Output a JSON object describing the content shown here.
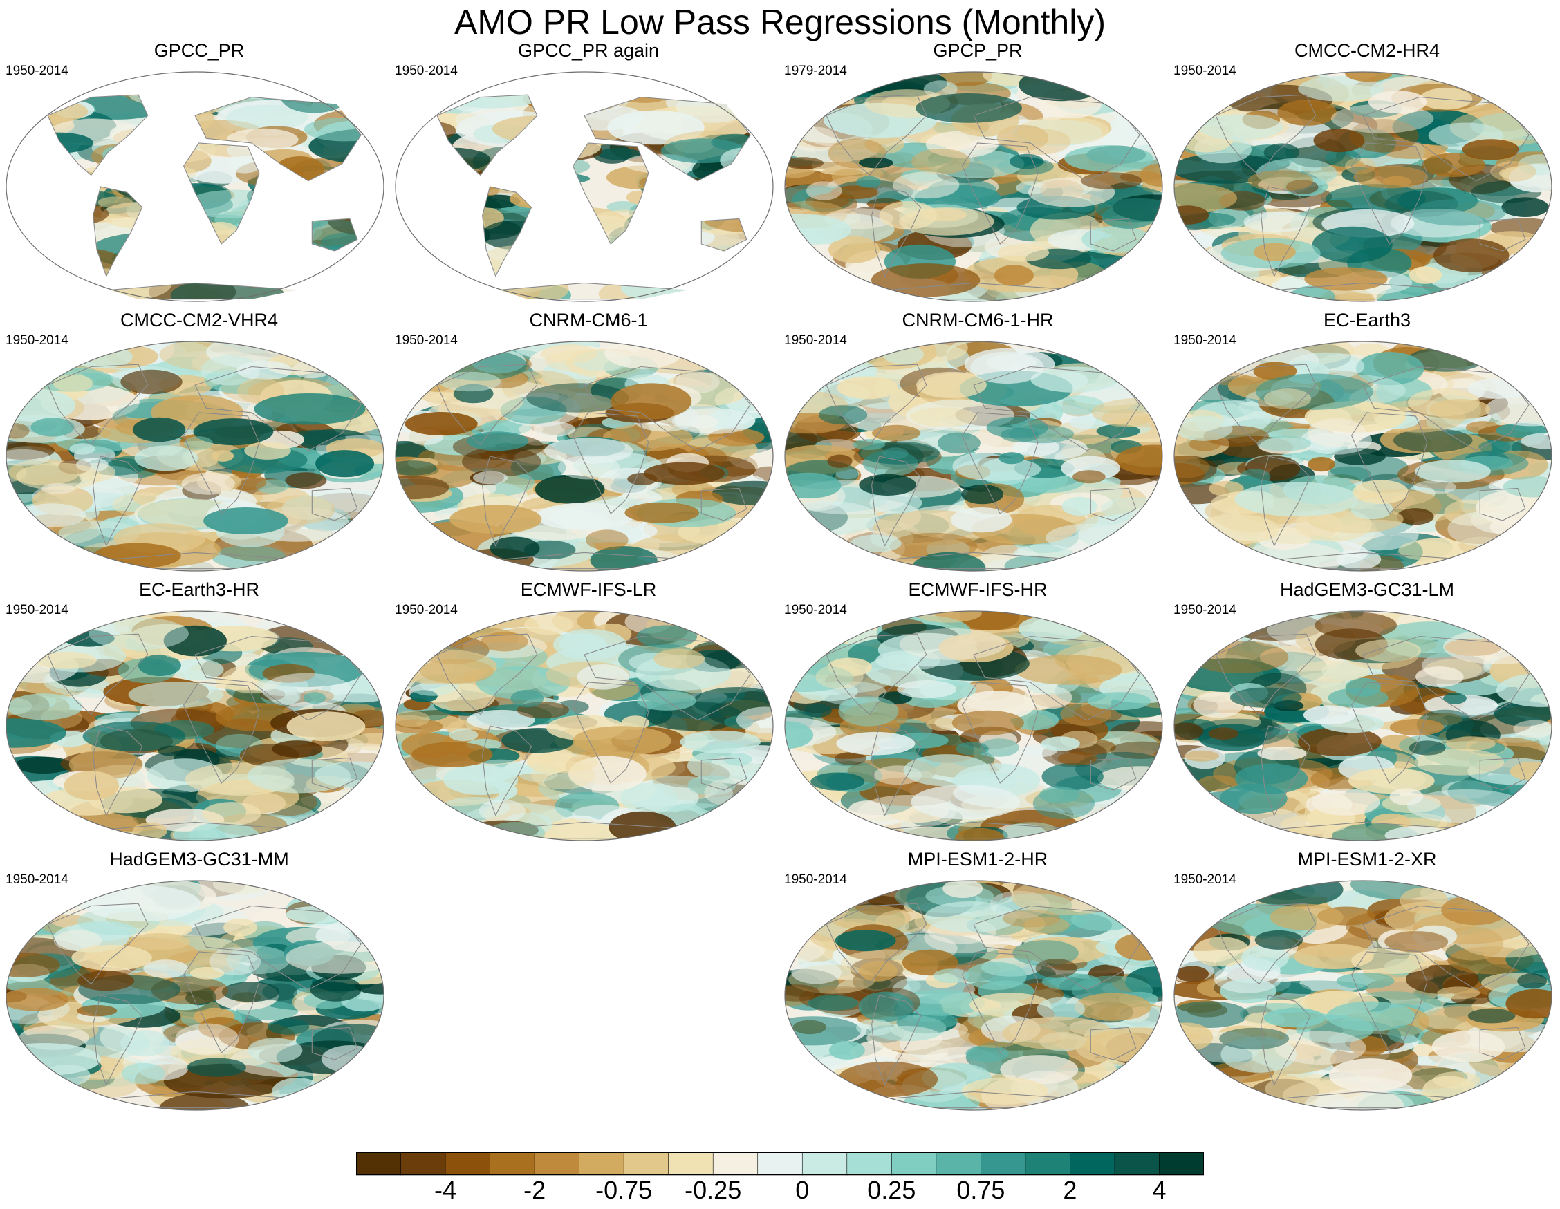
{
  "figure": {
    "title": "AMO PR Low Pass Regressions (Monthly)"
  },
  "panels": [
    {
      "title": "GPCC_PR",
      "years": "1950-2014",
      "coverage": "land"
    },
    {
      "title": "GPCC_PR again",
      "years": "1950-2014",
      "coverage": "land"
    },
    {
      "title": "GPCP_PR",
      "years": "1979-2014",
      "coverage": "global"
    },
    {
      "title": "CMCC-CM2-HR4",
      "years": "1950-2014",
      "coverage": "global"
    },
    {
      "title": "CMCC-CM2-VHR4",
      "years": "1950-2014",
      "coverage": "global"
    },
    {
      "title": "CNRM-CM6-1",
      "years": "1950-2014",
      "coverage": "global"
    },
    {
      "title": "CNRM-CM6-1-HR",
      "years": "1950-2014",
      "coverage": "global"
    },
    {
      "title": "EC-Earth3",
      "years": "1950-2014",
      "coverage": "global"
    },
    {
      "title": "EC-Earth3-HR",
      "years": "1950-2014",
      "coverage": "global"
    },
    {
      "title": "ECMWF-IFS-LR",
      "years": "1950-2014",
      "coverage": "global"
    },
    {
      "title": "ECMWF-IFS-HR",
      "years": "1950-2014",
      "coverage": "global"
    },
    {
      "title": "HadGEM3-GC31-LM",
      "years": "1950-2014",
      "coverage": "global"
    },
    {
      "title": "HadGEM3-GC31-MM",
      "years": "1950-2014",
      "coverage": "global"
    },
    null,
    {
      "title": "MPI-ESM1-2-HR",
      "years": "1950-2014",
      "coverage": "global"
    },
    {
      "title": "MPI-ESM1-2-XR",
      "years": "1950-2014",
      "coverage": "global"
    }
  ],
  "colorbar": {
    "colors": [
      "#543005",
      "#6b3d0a",
      "#8c510a",
      "#a9701f",
      "#bf8a3c",
      "#d2aa60",
      "#e3c88c",
      "#f1e2b4",
      "#f5f0e2",
      "#e8f3f1",
      "#c9ebe4",
      "#a6dfd6",
      "#80cdc1",
      "#5ab4a8",
      "#35978f",
      "#1f8277",
      "#01665e",
      "#0a544a",
      "#003c30"
    ],
    "labels": [
      "-4",
      "-2",
      "-0.75",
      "-0.25",
      "0",
      "0.25",
      "0.75",
      "2",
      "4"
    ],
    "label_boundaries": [
      2,
      4,
      6,
      8,
      10,
      12,
      14,
      16,
      18
    ]
  }
}
